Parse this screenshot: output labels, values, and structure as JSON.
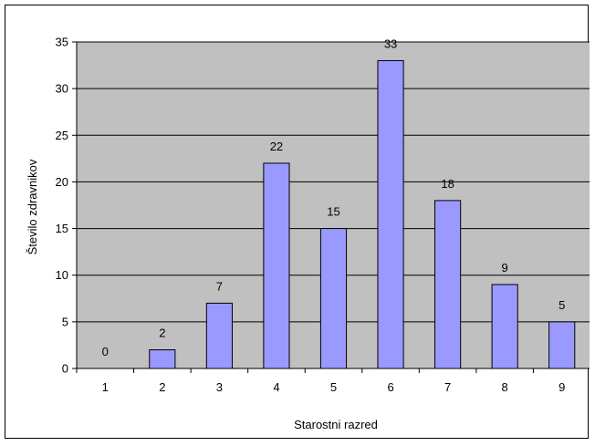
{
  "chart_data": {
    "type": "bar",
    "categories": [
      "1",
      "2",
      "3",
      "4",
      "5",
      "6",
      "7",
      "8",
      "9"
    ],
    "values": [
      0,
      2,
      7,
      22,
      15,
      33,
      18,
      9,
      5
    ],
    "data_labels": [
      "0",
      "2",
      "7",
      "22",
      "15",
      "33",
      "18",
      "9",
      "5"
    ],
    "title": "",
    "xlabel": "Starostni razred",
    "ylabel": "Število zdravnikov",
    "ylim": [
      0,
      35
    ],
    "yticks": [
      0,
      5,
      10,
      15,
      20,
      25,
      30,
      35
    ],
    "ytick_labels": [
      "0",
      "5",
      "10",
      "15",
      "20",
      "25",
      "30",
      "35"
    ],
    "grid": true,
    "legend": "none",
    "colors": {
      "plot_background": "#c0c0c0",
      "bar_fill": "#9999ff",
      "bar_stroke": "#000000",
      "gridline": "#000000"
    }
  }
}
